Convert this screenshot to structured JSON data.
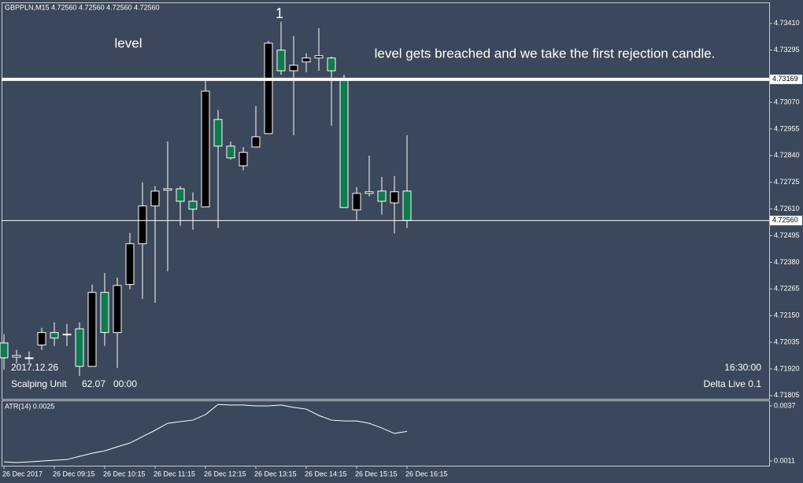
{
  "header": "GBPPLN,M15  4.72560 4.72560 4.72560 4.72560",
  "overlay": {
    "date": "2017.12.26",
    "time": "16:30:00",
    "unit": "Scalping Unit",
    "unit_value": "62.07",
    "clock": "00:00",
    "account": "Delta Live 0.1"
  },
  "chart_data": [
    {
      "type": "candlestick",
      "annotations": [
        "1",
        "level",
        "level gets breached and we take the first rejection candle."
      ],
      "categories": [
        "26 Dec 2017",
        null,
        null,
        null,
        "26 Dec 09:15",
        null,
        null,
        null,
        "26 Dec 10:15",
        null,
        null,
        null,
        "26 Dec 11:15",
        null,
        null,
        null,
        "26 Dec 12:15",
        null,
        null,
        null,
        "26 Dec 13:15",
        null,
        null,
        null,
        "26 Dec 14:15",
        null,
        null,
        null,
        "26 Dec 15:15",
        null,
        null,
        null,
        "26 Dec 16:15"
      ],
      "open": [
        4.72032,
        4.71971,
        4.71968,
        4.72023,
        4.72077,
        4.7207,
        4.72093,
        4.71931,
        4.7225,
        4.72077,
        4.72284,
        4.7246,
        4.72623,
        4.72691,
        4.72697,
        4.72643,
        4.72619,
        4.72996,
        4.72881,
        4.72796,
        4.72877,
        4.72935,
        4.73295,
        4.73206,
        4.73244,
        4.73261,
        4.73261,
        4.73172,
        4.72606,
        4.72677,
        4.72687,
        4.72636,
        4.72687
      ],
      "high": [
        4.7207,
        4.72002,
        4.71995,
        4.72097,
        4.72121,
        4.72114,
        4.72121,
        4.72284,
        4.72334,
        4.72314,
        4.72507,
        4.72725,
        4.72708,
        4.72901,
        4.72708,
        4.72681,
        4.73172,
        4.73037,
        4.72901,
        4.72877,
        4.73054,
        4.73335,
        4.73417,
        4.73356,
        4.73281,
        4.7339,
        4.73267,
        4.73189,
        4.72704,
        4.7284,
        4.72748,
        4.72752,
        4.72928
      ],
      "low": [
        4.71917,
        4.71944,
        4.71944,
        4.72002,
        4.72019,
        4.72019,
        4.7189,
        4.71931,
        4.72019,
        4.71924,
        4.72263,
        4.72222,
        4.72205,
        4.72341,
        4.72538,
        4.72521,
        4.72619,
        4.72528,
        4.72823,
        4.72776,
        4.72877,
        4.72935,
        4.73189,
        4.72928,
        4.732,
        4.73206,
        4.72969,
        4.72616,
        4.72562,
        4.72664,
        4.72586,
        4.72504,
        4.72528
      ],
      "close": [
        4.71968,
        4.71978,
        4.71968,
        4.72077,
        4.72053,
        4.7207,
        4.71931,
        4.7225,
        4.72077,
        4.7228,
        4.7246,
        4.72623,
        4.72687,
        4.72697,
        4.72643,
        4.72609,
        4.73118,
        4.72881,
        4.7283,
        4.72854,
        4.72921,
        4.73325,
        4.73206,
        4.7323,
        4.73261,
        4.73271,
        4.73206,
        4.72616,
        4.72677,
        4.72684,
        4.72643,
        4.72684,
        4.7256
      ],
      "up_color": "#000000",
      "down_color": "#0f7a4f",
      "wick_color": "#ffffff",
      "ylim": [
        4.71791,
        4.73501
      ],
      "yticks": [
        {
          "value": 4.7341,
          "label": "4.73410"
        },
        4.73295,
        {
          "value": 4.7307,
          "label": "4.73070"
        },
        4.72955,
        {
          "value": 4.7284,
          "label": "4.72840"
        },
        4.72725,
        {
          "value": 4.7261,
          "label": "4.72610"
        },
        4.72495,
        {
          "value": 4.7238,
          "label": "4.72380"
        },
        4.72265,
        {
          "value": 4.7215,
          "label": "4.72150"
        },
        4.72035,
        {
          "value": 4.7192,
          "label": "4.71920"
        },
        4.71805
      ],
      "levels": [
        {
          "value": 4.73169,
          "label": "4.73169"
        },
        {
          "value": 4.7256,
          "label": "4.72560"
        }
      ]
    },
    {
      "type": "line",
      "title": "ATR(14) 0.0025",
      "color": "#ffffff",
      "values": [
        0.00106,
        0.00103,
        0.00106,
        0.0011,
        0.00114,
        0.00117,
        0.00132,
        0.00147,
        0.00158,
        0.00177,
        0.00195,
        0.00225,
        0.00255,
        0.00288,
        0.00296,
        0.00303,
        0.00329,
        0.00377,
        0.00374,
        0.00374,
        0.0037,
        0.0037,
        0.00374,
        0.00363,
        0.00355,
        0.00325,
        0.00303,
        0.00299,
        0.00299,
        0.00288,
        0.00266,
        0.0024,
        0.0025
      ],
      "ylim": [
        0.00088,
        0.00396
      ],
      "yticks": [
        0.0037,
        0.0011
      ]
    }
  ]
}
